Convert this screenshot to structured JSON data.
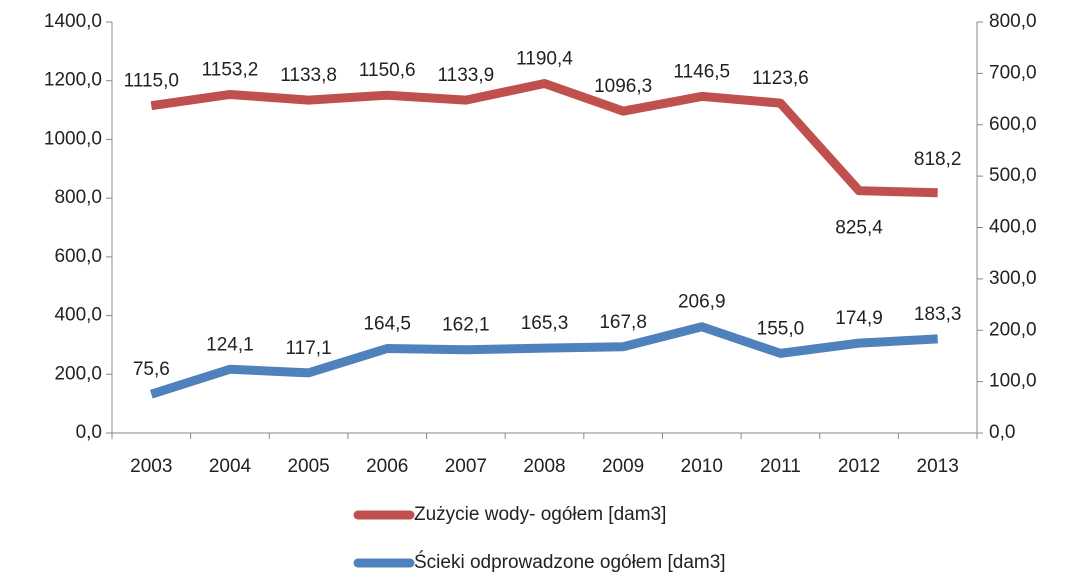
{
  "chart_data": {
    "type": "line",
    "categories": [
      "2003",
      "2004",
      "2005",
      "2006",
      "2007",
      "2008",
      "2009",
      "2010",
      "2011",
      "2012",
      "2013"
    ],
    "series": [
      {
        "name": "Zużycie wody- ogółem [dam3]",
        "color": "#c0504d",
        "axis": "y",
        "values": [
          1115.0,
          1153.2,
          1133.8,
          1150.6,
          1133.9,
          1190.4,
          1096.3,
          1146.5,
          1123.6,
          825.4,
          818.2
        ],
        "value_labels": [
          "1115,0",
          "1153,2",
          "1133,8",
          "1150,6",
          "1133,9",
          "1190,4",
          "1096,3",
          "1146,5",
          "1123,6",
          "825,4",
          "818,2"
        ]
      },
      {
        "name": "Ścieki odprowadzone ogółem [dam3]",
        "color": "#4f81bd",
        "axis": "y2",
        "values": [
          75.6,
          124.1,
          117.1,
          164.5,
          162.1,
          165.3,
          167.8,
          206.9,
          155.0,
          174.9,
          183.3
        ],
        "value_labels": [
          "75,6",
          "124,1",
          "117,1",
          "164,5",
          "162,1",
          "165,3",
          "167,8",
          "206,9",
          "155,0",
          "174,9",
          "183,3"
        ]
      }
    ],
    "ylim": [
      0,
      1400
    ],
    "yticks": [
      {
        "value": 0,
        "label": "0,0"
      },
      {
        "value": 200,
        "label": "200,0"
      },
      {
        "value": 400,
        "label": "400,0"
      },
      {
        "value": 600,
        "label": "600,0"
      },
      {
        "value": 800,
        "label": "800,0"
      },
      {
        "value": 1000,
        "label": "1000,0"
      },
      {
        "value": 1200,
        "label": "1200,0"
      },
      {
        "value": 1400,
        "label": "1400,0"
      }
    ],
    "y2lim": [
      0,
      800
    ],
    "y2ticks": [
      {
        "value": 0,
        "label": "0,0"
      },
      {
        "value": 100,
        "label": "100,0"
      },
      {
        "value": 200,
        "label": "200,0"
      },
      {
        "value": 300,
        "label": "300,0"
      },
      {
        "value": 400,
        "label": "400,0"
      },
      {
        "value": 500,
        "label": "500,0"
      },
      {
        "value": 600,
        "label": "600,0"
      },
      {
        "value": 700,
        "label": "700,0"
      },
      {
        "value": 800,
        "label": "800,0"
      }
    ],
    "grid": false,
    "legend": "bottom"
  }
}
